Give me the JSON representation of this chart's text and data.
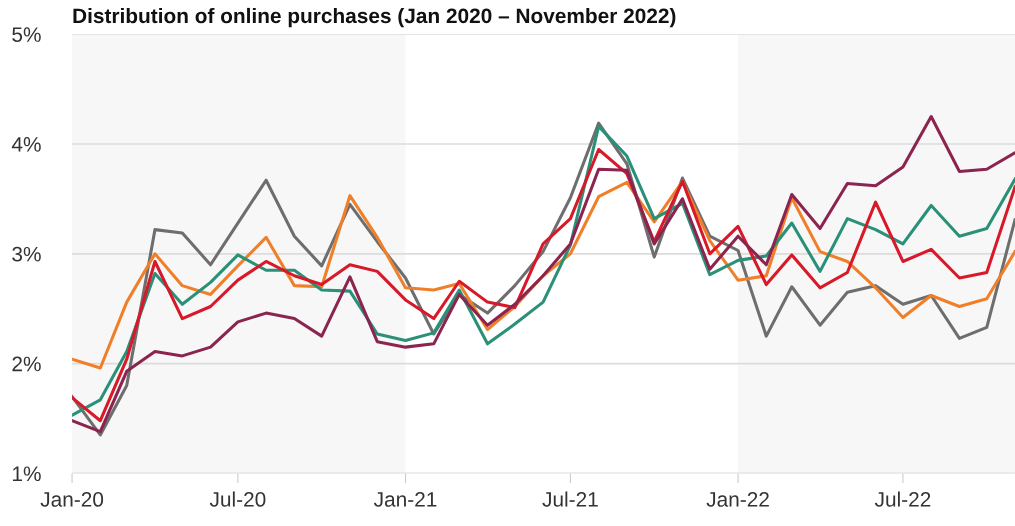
{
  "chart_data": {
    "type": "line",
    "title": "Distribution of online purchases (Jan 2020 – November 2022)",
    "x": [
      "2020-01",
      "2020-02",
      "2020-03",
      "2020-04",
      "2020-05",
      "2020-06",
      "2020-07",
      "2020-08",
      "2020-09",
      "2020-10",
      "2020-11",
      "2020-12",
      "2021-01",
      "2021-02",
      "2021-03",
      "2021-04",
      "2021-05",
      "2021-06",
      "2021-07",
      "2021-08",
      "2021-09",
      "2021-10",
      "2021-11",
      "2021-12",
      "2022-01",
      "2022-02",
      "2022-03",
      "2022-04",
      "2022-05",
      "2022-06",
      "2022-07",
      "2022-08",
      "2022-09",
      "2022-10",
      "2022-11"
    ],
    "series": [
      {
        "color": "#6e6e6e",
        "values": [
          1.7,
          1.35,
          1.8,
          3.22,
          3.19,
          2.9,
          3.28,
          3.67,
          3.16,
          2.89,
          3.45,
          3.11,
          2.78,
          2.27,
          2.63,
          2.46,
          2.71,
          3.02,
          3.51,
          4.19,
          3.82,
          2.97,
          3.69,
          3.16,
          3.03,
          2.25,
          2.7,
          2.35,
          2.65,
          2.71,
          2.54,
          2.62,
          2.23,
          2.33,
          3.31
        ]
      },
      {
        "color": "#f07f2a",
        "values": [
          2.04,
          1.96,
          2.56,
          3.0,
          2.71,
          2.63,
          2.89,
          3.15,
          2.71,
          2.7,
          3.53,
          3.15,
          2.69,
          2.67,
          2.73,
          2.31,
          2.52,
          2.8,
          3.0,
          3.52,
          3.65,
          3.29,
          3.66,
          3.12,
          2.76,
          2.8,
          3.51,
          3.02,
          2.93,
          2.69,
          2.42,
          2.62,
          2.52,
          2.59,
          3.02
        ]
      },
      {
        "color": "#2a9078",
        "values": [
          1.53,
          1.67,
          2.11,
          2.82,
          2.54,
          2.74,
          2.99,
          2.85,
          2.85,
          2.67,
          2.66,
          2.27,
          2.21,
          2.28,
          2.67,
          2.18,
          2.36,
          2.56,
          3.08,
          4.16,
          3.89,
          3.32,
          3.46,
          2.81,
          2.94,
          2.98,
          3.28,
          2.84,
          3.32,
          3.22,
          3.09,
          3.44,
          3.16,
          3.23,
          3.68
        ]
      },
      {
        "color": "#d7192a",
        "values": [
          1.69,
          1.48,
          2.04,
          2.93,
          2.41,
          2.52,
          2.76,
          2.93,
          2.8,
          2.72,
          2.9,
          2.84,
          2.58,
          2.41,
          2.75,
          2.56,
          2.51,
          3.09,
          3.32,
          3.95,
          3.73,
          3.11,
          3.66,
          3.0,
          3.25,
          2.72,
          2.99,
          2.69,
          2.83,
          3.47,
          2.93,
          3.04,
          2.78,
          2.83,
          3.61
        ]
      },
      {
        "color": "#8b2550",
        "values": [
          1.48,
          1.38,
          1.93,
          2.11,
          2.07,
          2.15,
          2.38,
          2.46,
          2.41,
          2.25,
          2.79,
          2.2,
          2.15,
          2.18,
          2.63,
          2.35,
          2.54,
          2.8,
          3.09,
          3.77,
          3.76,
          3.09,
          3.5,
          2.86,
          3.16,
          2.9,
          3.54,
          3.23,
          3.64,
          3.62,
          3.79,
          4.25,
          3.75,
          3.77,
          3.92
        ]
      }
    ],
    "xlim": [
      "2020-01",
      "2022-11"
    ],
    "xticks": [
      {
        "value": "2020-01",
        "label": "Jan-20"
      },
      {
        "value": "2020-07",
        "label": "Jul-20"
      },
      {
        "value": "2021-01",
        "label": "Jan-21"
      },
      {
        "value": "2021-07",
        "label": "Jul-21"
      },
      {
        "value": "2022-01",
        "label": "Jan-22"
      },
      {
        "value": "2022-07",
        "label": "Jul-22"
      }
    ],
    "ylim": [
      1,
      5
    ],
    "yticks": [
      {
        "value": 1,
        "label": "1%"
      },
      {
        "value": 2,
        "label": "2%"
      },
      {
        "value": 3,
        "label": "3%"
      },
      {
        "value": 4,
        "label": "4%"
      },
      {
        "value": 5,
        "label": "5%"
      }
    ],
    "grid": "y",
    "bands": [
      {
        "axis": "x",
        "from": "2020-01",
        "to": "2021-01",
        "color": "#f7f7f7"
      },
      {
        "axis": "x",
        "from": "2022-01",
        "to": "2022-11",
        "color": "#f7f7f7"
      }
    ]
  }
}
